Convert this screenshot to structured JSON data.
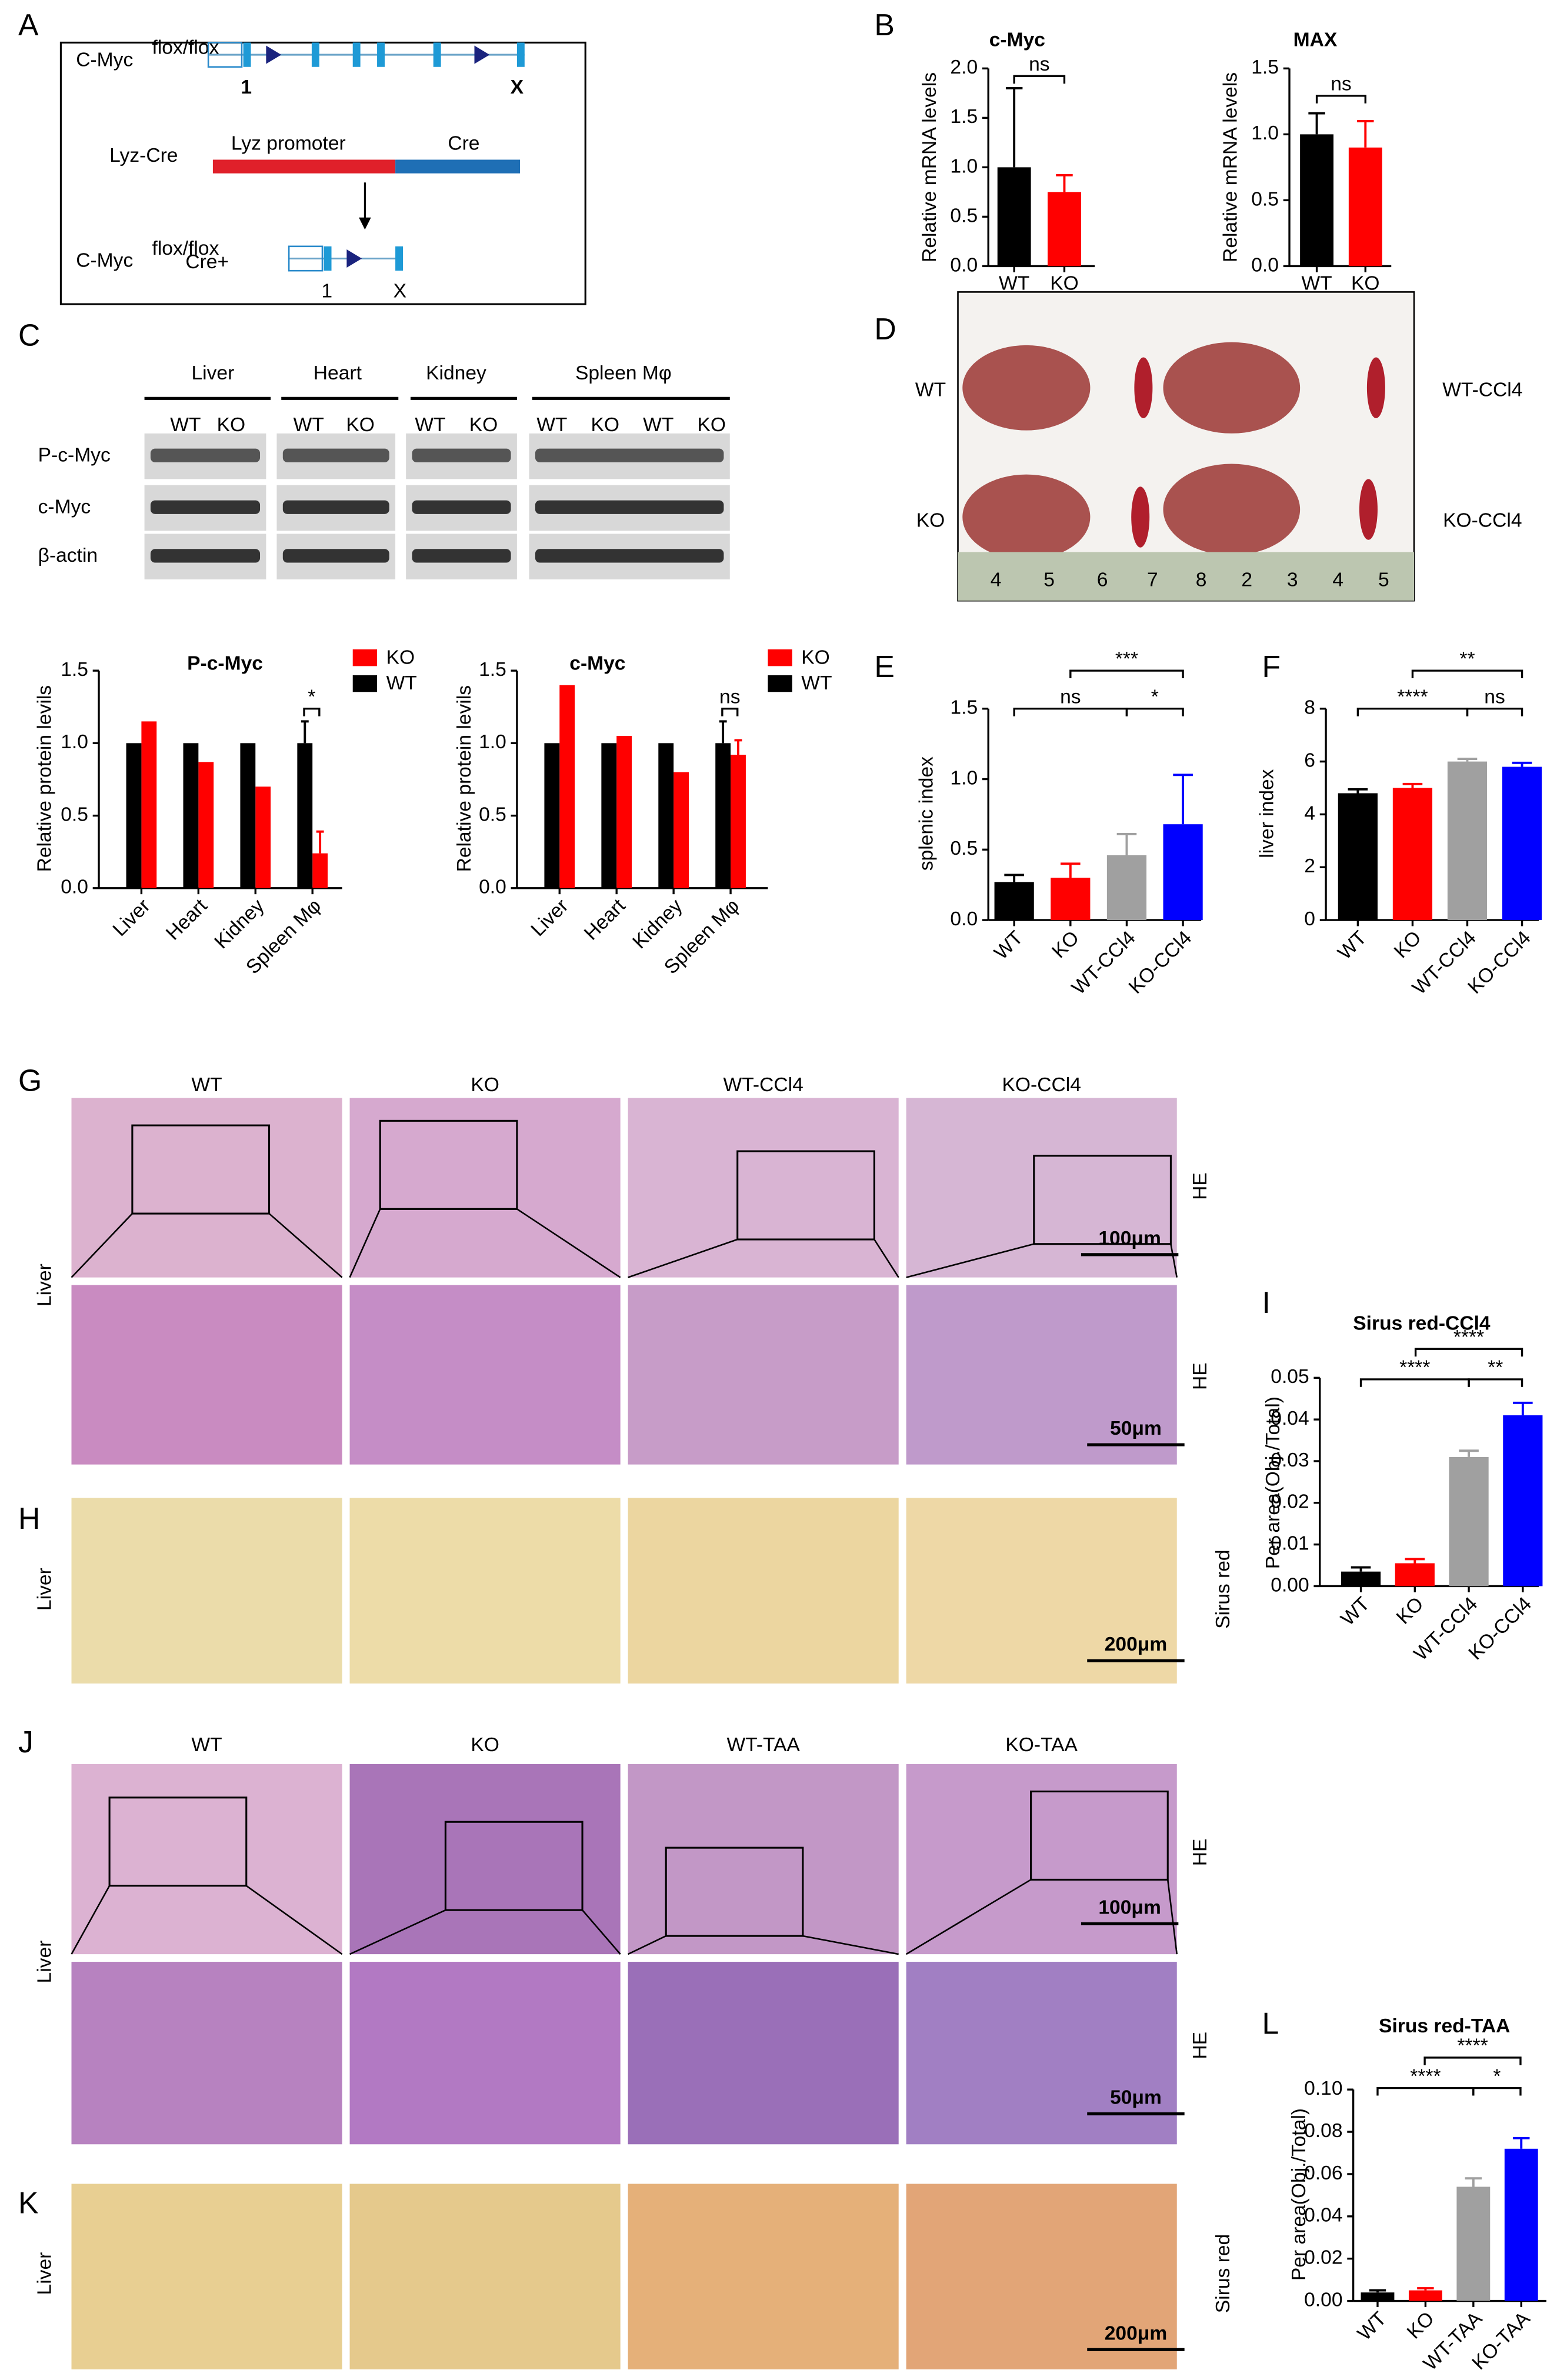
{
  "panel_labels": [
    "A",
    "B",
    "C",
    "D",
    "E",
    "F",
    "G",
    "H",
    "I",
    "J",
    "K",
    "L"
  ],
  "schematic": {
    "allele": "C-Myc",
    "superscript": "flox/flox",
    "exon_first": "1",
    "exon_last": "X",
    "cre_line": "Lyz-Cre",
    "promoter": "Lyz  promoter",
    "cre": "Cre",
    "result_suffix": "Cre+"
  },
  "western_blot": {
    "tissues": [
      "Liver",
      "Heart",
      "Kidney",
      "Spleen Mφ"
    ],
    "genotypes": [
      "WT",
      "KO"
    ],
    "rows": [
      "P-c-Myc",
      "c-Myc",
      "β-actin"
    ]
  },
  "photo_D": {
    "labels_left": [
      "WT",
      "KO"
    ],
    "labels_right": [
      "WT-CCl4",
      "KO-CCl4"
    ],
    "ruler_numbers": [
      "4",
      "5",
      "6",
      "7",
      "8",
      "2",
      "3",
      "4",
      "5"
    ]
  },
  "histology": {
    "ccl4_columns": [
      "WT",
      "KO",
      "WT-CCl4",
      "KO-CCl4"
    ],
    "taa_columns": [
      "WT",
      "KO",
      "WT-TAA",
      "KO-TAA"
    ],
    "tissue": "Liver",
    "stain_he": "HE",
    "stain_sr": "Sirus red",
    "scale_100": "100μm",
    "scale_50": "50μm",
    "scale_200": "200μm"
  },
  "chart_data": [
    {
      "type": "bar",
      "title": "c-Myc",
      "y_label": "Relative mRNA levels",
      "categories": [
        "WT",
        "KO"
      ],
      "values": [
        1.0,
        0.75
      ],
      "errors": [
        0.8,
        0.17
      ],
      "colors": [
        "#000000",
        "#ff0000"
      ],
      "ylim": [
        0,
        2.0
      ],
      "yticks": [
        {
          "value": 0,
          "label": "0.0"
        },
        0.5,
        {
          "value": 1,
          "label": "1.0"
        },
        1.5,
        {
          "value": 2,
          "label": "2.0"
        }
      ],
      "annotations": [
        "ns"
      ]
    },
    {
      "type": "bar",
      "title": "MAX",
      "y_label": "Relative mRNA levels",
      "categories": [
        "WT",
        "KO"
      ],
      "values": [
        1.0,
        0.9
      ],
      "errors": [
        0.16,
        0.2
      ],
      "colors": [
        "#000000",
        "#ff0000"
      ],
      "ylim": [
        0,
        1.5
      ],
      "yticks": [
        {
          "value": 0,
          "label": "0.0"
        },
        0.5,
        {
          "value": 1,
          "label": "1.0"
        },
        1.5
      ],
      "annotations": [
        "ns"
      ]
    },
    {
      "type": "grouped_bar",
      "title": "P-c-Myc",
      "y_label": "Relative protein levils",
      "categories": [
        "Liver",
        "Heart",
        "Kidney",
        "Spleen Mφ"
      ],
      "series": [
        {
          "name": "KO",
          "color": "#ff0000",
          "values": [
            1.15,
            0.87,
            0.7,
            0.24
          ],
          "errors": [
            null,
            null,
            null,
            0.15
          ]
        },
        {
          "name": "WT",
          "color": "#000000",
          "values": [
            1.0,
            1.0,
            1.0,
            1.0
          ],
          "errors": [
            null,
            null,
            null,
            0.15
          ]
        }
      ],
      "ylim": [
        0,
        1.5
      ],
      "yticks": [
        {
          "value": 0,
          "label": "0.0"
        },
        0.5,
        {
          "value": 1,
          "label": "1.0"
        },
        1.5
      ],
      "annotations": [
        "*"
      ]
    },
    {
      "type": "grouped_bar",
      "title": "c-Myc",
      "y_label": "Relative protein levils",
      "categories": [
        "Liver",
        "Heart",
        "Kidney",
        "Spleen Mφ"
      ],
      "series": [
        {
          "name": "KO",
          "color": "#ff0000",
          "values": [
            1.4,
            1.05,
            0.8,
            0.92
          ],
          "errors": [
            null,
            null,
            null,
            0.1
          ]
        },
        {
          "name": "WT",
          "color": "#000000",
          "values": [
            1.0,
            1.0,
            1.0,
            1.0
          ],
          "errors": [
            null,
            null,
            null,
            0.15
          ]
        }
      ],
      "ylim": [
        0,
        1.5
      ],
      "yticks": [
        {
          "value": 0,
          "label": "0.0"
        },
        0.5,
        {
          "value": 1,
          "label": "1.0"
        },
        1.5
      ],
      "annotations": [
        "ns"
      ]
    },
    {
      "type": "bar",
      "y_label": "splenic index",
      "categories": [
        "WT",
        "KO",
        "WT-CCl4",
        "KO-CCl4"
      ],
      "values": [
        0.27,
        0.3,
        0.46,
        0.68
      ],
      "errors": [
        0.05,
        0.1,
        0.15,
        0.35
      ],
      "colors": [
        "#000000",
        "#ff0000",
        "#a0a0a0",
        "#0000ff"
      ],
      "ylim": [
        0,
        1.5
      ],
      "yticks": [
        {
          "value": 0,
          "label": "0.0"
        },
        0.5,
        {
          "value": 1,
          "label": "1.0"
        },
        1.5
      ],
      "annotations": [
        "ns",
        "***",
        "*"
      ]
    },
    {
      "type": "bar",
      "y_label": "liver index",
      "categories": [
        "WT",
        "KO",
        "WT-CCl4",
        "KO-CCl4"
      ],
      "values": [
        4.8,
        5.0,
        6.0,
        5.8
      ],
      "errors": [
        0.15,
        0.15,
        0.1,
        0.15
      ],
      "colors": [
        "#000000",
        "#ff0000",
        "#a0a0a0",
        "#0000ff"
      ],
      "ylim": [
        0,
        8
      ],
      "yticks": [
        0,
        2,
        4,
        6,
        8
      ],
      "annotations": [
        "****",
        "**",
        "ns"
      ]
    },
    {
      "type": "bar",
      "title": "Sirus red-CCl4",
      "y_label": "Per area(Obj./Total)",
      "categories": [
        "WT",
        "KO",
        "WT-CCl4",
        "KO-CCl4"
      ],
      "values": [
        0.0035,
        0.0055,
        0.031,
        0.041
      ],
      "errors": [
        0.001,
        0.001,
        0.0015,
        0.003
      ],
      "colors": [
        "#000000",
        "#ff0000",
        "#a0a0a0",
        "#0000ff"
      ],
      "ylim": [
        0,
        0.05
      ],
      "yticks": [
        {
          "value": 0,
          "label": "0.00"
        },
        0.01,
        0.02,
        0.03,
        0.04,
        0.05
      ],
      "annotations": [
        "****",
        "****",
        "**"
      ]
    },
    {
      "type": "bar",
      "title": "Sirus red-TAA",
      "y_label": "Per area(Obj./Total)",
      "categories": [
        "WT",
        "KO",
        "WT-TAA",
        "KO-TAA"
      ],
      "values": [
        0.004,
        0.005,
        0.054,
        0.072
      ],
      "errors": [
        0.001,
        0.001,
        0.004,
        0.005
      ],
      "colors": [
        "#000000",
        "#ff0000",
        "#a0a0a0",
        "#0000ff"
      ],
      "ylim": [
        0,
        0.1
      ],
      "yticks": [
        {
          "value": 0,
          "label": "0.00"
        },
        0.02,
        0.04,
        0.06,
        0.08,
        {
          "value": 0.1,
          "label": "0.10"
        }
      ],
      "annotations": [
        "****",
        "****",
        "*"
      ]
    }
  ]
}
